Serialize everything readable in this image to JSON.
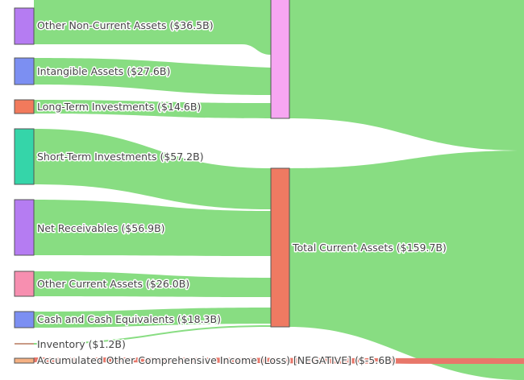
{
  "diagram": {
    "type": "sankey",
    "link_color": "#88dd82",
    "negative_link_color": "#e8776a",
    "nodes": [
      {
        "id": "ncur",
        "label": "Other Non-Current Assets ($36.5B)",
        "color": "#b57cf2"
      },
      {
        "id": "intang",
        "label": "Intangible Assets ($27.6B)",
        "color": "#7c8ff2"
      },
      {
        "id": "lti",
        "label": "Long-Term Investments ($14.6B)",
        "color": "#f27a5c"
      },
      {
        "id": "sti",
        "label": "Short-Term Investments ($57.2B)",
        "color": "#35d5a9"
      },
      {
        "id": "rec",
        "label": "Net Receivables ($56.9B)",
        "color": "#b57cf2"
      },
      {
        "id": "oca",
        "label": "Other Current Assets ($26.0B)",
        "color": "#f78fb0"
      },
      {
        "id": "cash",
        "label": "Cash and Cash Equivalents ($18.3B)",
        "color": "#7c8ff2"
      },
      {
        "id": "inv",
        "label": "Inventory ($1.2B)",
        "color": "#c99a86"
      },
      {
        "id": "aoci",
        "label": "Accumulated Other Comprehensive Income (Loss) [NEGATIVE] ($-5.6B)",
        "color": "#f5b183"
      },
      {
        "id": "noncur",
        "label": "",
        "color": "#f7a6f2"
      },
      {
        "id": "tca",
        "label": "Total Current Assets ($159.7B)",
        "color": "#ef7a62"
      }
    ],
    "links": [
      {
        "source": "ncur",
        "target": "noncur",
        "value": 36.5
      },
      {
        "source": "intang",
        "target": "noncur",
        "value": 27.6
      },
      {
        "source": "lti",
        "target": "noncur",
        "value": 14.6
      },
      {
        "source": "sti",
        "target": "tca",
        "value": 57.2
      },
      {
        "source": "rec",
        "target": "tca",
        "value": 56.9
      },
      {
        "source": "oca",
        "target": "tca",
        "value": 26.0
      },
      {
        "source": "cash",
        "target": "tca",
        "value": 18.3
      },
      {
        "source": "inv",
        "target": "tca",
        "value": 1.2
      },
      {
        "source": "noncur",
        "target": "total",
        "value": 78.7
      },
      {
        "source": "tca",
        "target": "total",
        "value": 159.7
      },
      {
        "source": "aoci",
        "target": "total",
        "value": -5.6
      }
    ]
  }
}
